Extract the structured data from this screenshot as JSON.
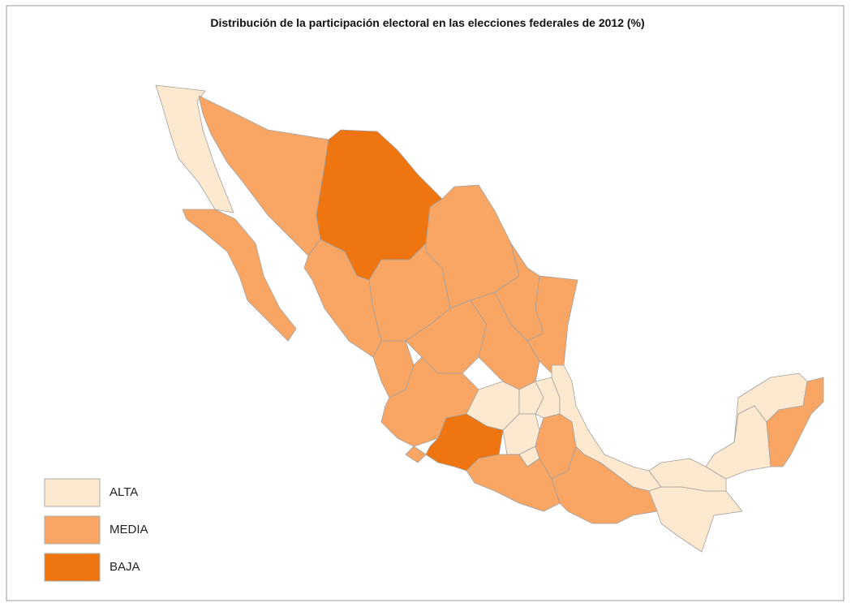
{
  "title": "Distribución de la participación electoral en las elecciones federales de 2012 (%)",
  "legend": [
    {
      "label": "ALTA",
      "color": "#fde9cf"
    },
    {
      "label": "MEDIA",
      "color": "#f9a665"
    },
    {
      "label": "BAJA",
      "color": "#ee7510"
    }
  ]
}
